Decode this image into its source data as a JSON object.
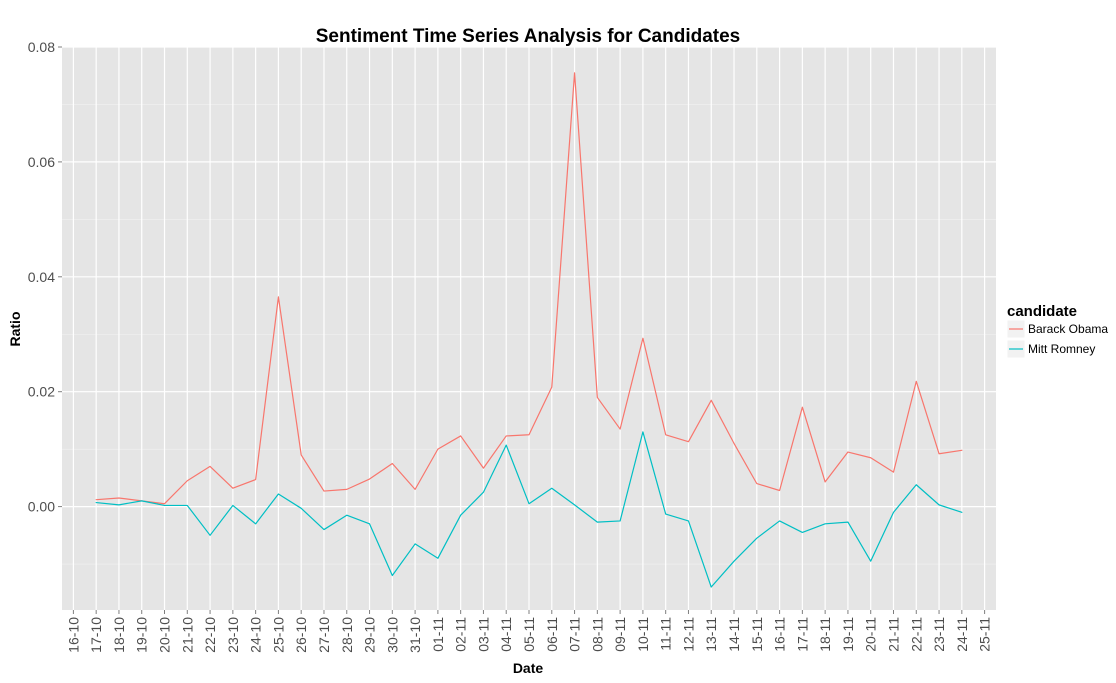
{
  "chart_data": {
    "type": "line",
    "title": "Sentiment Time Series Analysis for Candidates",
    "xlabel": "Date",
    "ylabel": "Ratio",
    "x": [
      "16-10",
      "17-10",
      "18-10",
      "19-10",
      "20-10",
      "21-10",
      "22-10",
      "23-10",
      "24-10",
      "25-10",
      "26-10",
      "27-10",
      "28-10",
      "29-10",
      "30-10",
      "31-10",
      "01-11",
      "02-11",
      "03-11",
      "04-11",
      "05-11",
      "06-11",
      "07-11",
      "08-11",
      "09-11",
      "10-11",
      "11-11",
      "12-11",
      "13-11",
      "14-11",
      "15-11",
      "16-11",
      "17-11",
      "18-11",
      "19-11",
      "20-11",
      "21-11",
      "22-11",
      "23-11",
      "24-11",
      "25-11"
    ],
    "ylim": [
      -0.018,
      0.08
    ],
    "yticks": [
      0.0,
      0.02,
      0.04,
      0.06,
      0.08
    ],
    "ytick_labels": [
      "0.00",
      "0.02",
      "0.04",
      "0.06",
      "0.08"
    ],
    "grid": true,
    "legend": {
      "title": "candidate",
      "position": "right"
    },
    "series": [
      {
        "name": "Barack Obama",
        "color": "#f8766d",
        "values": [
          null,
          0.0012,
          0.0015,
          0.001,
          0.0005,
          0.0045,
          0.007,
          0.0032,
          0.0047,
          0.0365,
          0.009,
          0.0027,
          0.003,
          0.0048,
          0.0075,
          0.003,
          0.01,
          0.0123,
          0.0067,
          0.0123,
          0.0125,
          0.0208,
          0.0755,
          0.019,
          0.0135,
          0.0293,
          0.0125,
          0.0113,
          0.0185,
          0.011,
          0.004,
          0.0028,
          0.0173,
          0.0043,
          0.0095,
          0.0085,
          0.006,
          0.0218,
          0.0092,
          0.0098,
          null
        ]
      },
      {
        "name": "Mitt Romney",
        "color": "#00bfc4",
        "values": [
          null,
          0.0007,
          0.0003,
          0.001,
          0.0002,
          0.0002,
          -0.005,
          0.0002,
          -0.003,
          0.0022,
          -0.0003,
          -0.004,
          -0.0015,
          -0.003,
          -0.012,
          -0.0065,
          -0.009,
          -0.0015,
          0.0025,
          0.0107,
          0.0005,
          0.0032,
          0.0003,
          -0.0027,
          -0.0025,
          0.013,
          -0.0013,
          -0.0025,
          -0.014,
          -0.0095,
          -0.0055,
          -0.0025,
          -0.0045,
          -0.003,
          -0.0027,
          -0.0095,
          -0.001,
          0.0038,
          0.0003,
          -0.001,
          null
        ]
      }
    ]
  }
}
